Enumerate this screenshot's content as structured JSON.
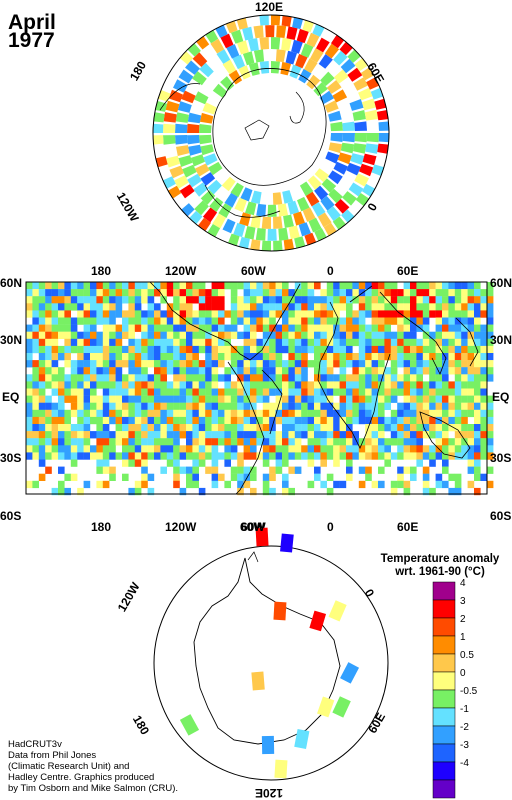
{
  "title": {
    "month": "April",
    "year": "1977"
  },
  "north_polar": {
    "labels": {
      "top": "120E",
      "upper_left": "180",
      "upper_right": "60E",
      "lower_left": "120W",
      "right": "0"
    }
  },
  "world_map": {
    "top_longitudes": [
      "180",
      "120W",
      "60W",
      "0",
      "60E"
    ],
    "bottom_longitudes": [
      "180",
      "120W",
      "60W",
      "0",
      "60E"
    ],
    "latitudes": [
      "60N",
      "30N",
      "EQ",
      "30S",
      "60S"
    ]
  },
  "south_polar": {
    "labels": {
      "top": "60W",
      "upper_left": "120W",
      "right": "0",
      "lower_left": "180",
      "lower_right": "60E",
      "bottom": "120E"
    }
  },
  "legend": {
    "title_line1": "Temperature anomaly",
    "title_line2": "wrt. 1961-90  (°C)",
    "items": [
      {
        "label": "4",
        "color": "#a0008c"
      },
      {
        "label": "3",
        "color": "#ff0000"
      },
      {
        "label": "2",
        "color": "#ff4b00"
      },
      {
        "label": "1",
        "color": "#ff8c00"
      },
      {
        "label": "0.5",
        "color": "#ffc84b"
      },
      {
        "label": "0",
        "color": "#ffff7d"
      },
      {
        "label": "-0.5",
        "color": "#78f064"
      },
      {
        "label": "-1",
        "color": "#64e1ff"
      },
      {
        "label": "-2",
        "color": "#32a0ff"
      },
      {
        "label": "-3",
        "color": "#1e64ff"
      },
      {
        "label": "-4",
        "color": "#1e00ff"
      },
      {
        "label": "",
        "color": "#6400c8"
      }
    ]
  },
  "credits": {
    "line1": "HadCRUT3v",
    "line2": "Data from Phil Jones",
    "line3": "(Climatic Research Unit) and",
    "line4": "Hadley Centre.  Graphics produced",
    "line5": "by Tim Osborn and Mike Salmon (CRU)."
  }
}
